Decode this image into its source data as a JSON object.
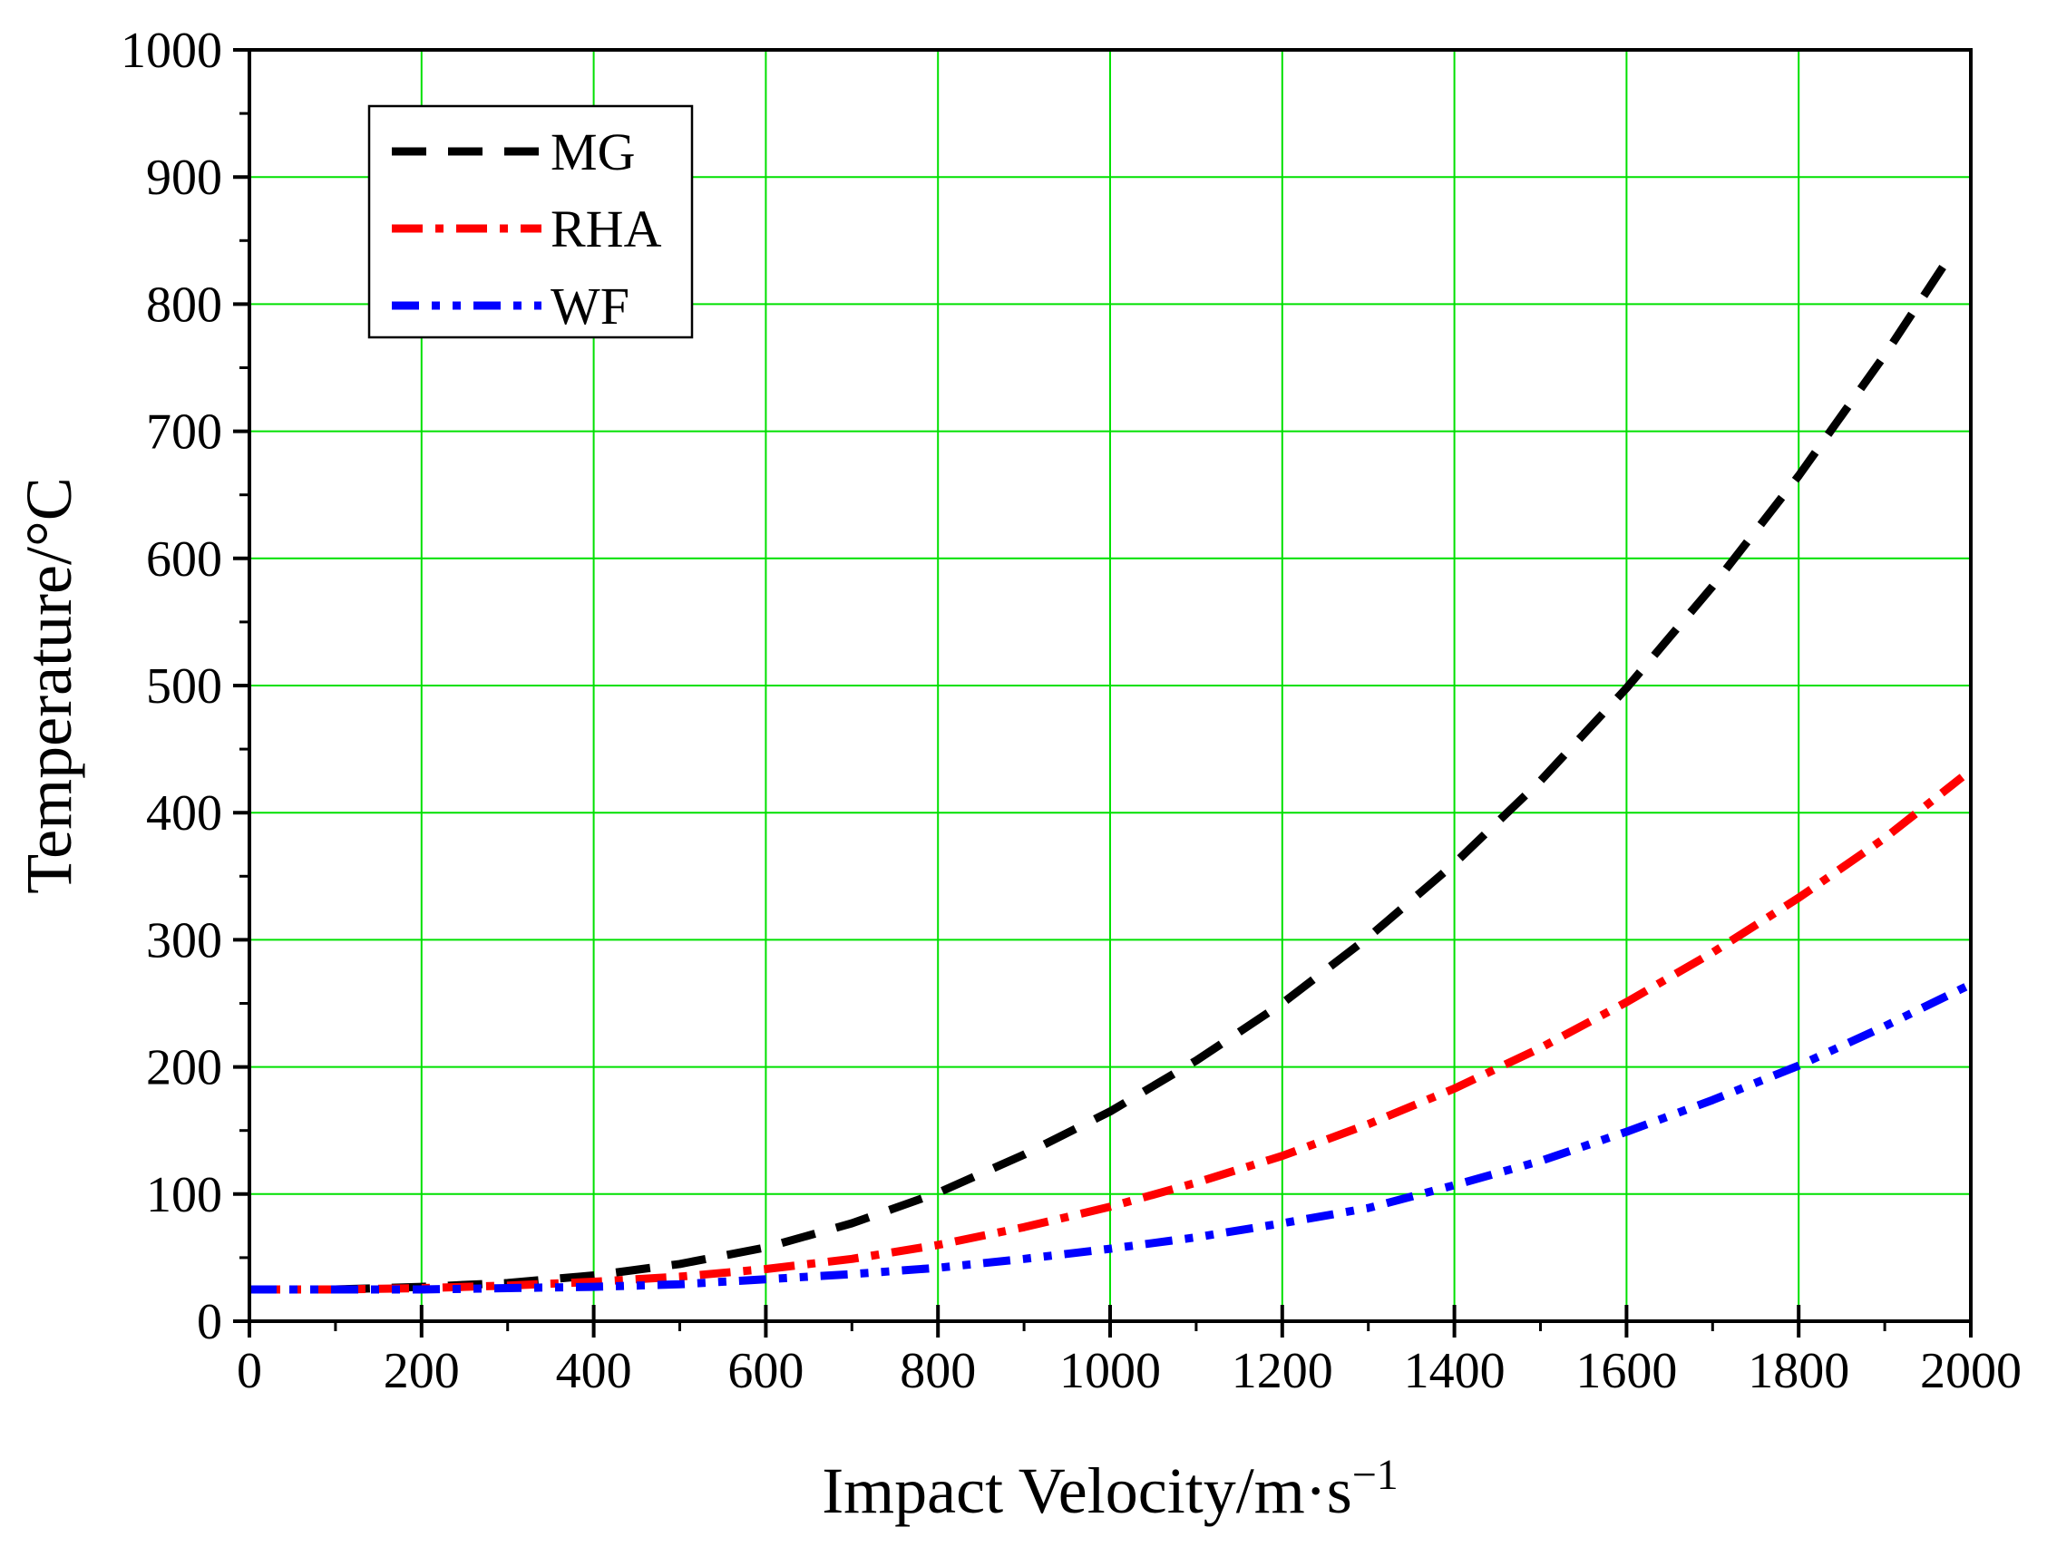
{
  "chart_data": {
    "type": "line",
    "title": "",
    "xlabel": "Impact Velocity/m·s",
    "xlabel_superscript": "−1",
    "ylabel": "Temperature/°C",
    "xlim": [
      0,
      2000
    ],
    "ylim": [
      0,
      1000
    ],
    "xticks": [
      "0",
      "200",
      "400",
      "600",
      "800",
      "1000",
      "1200",
      "1400",
      "1600",
      "1800",
      "2000"
    ],
    "yticks": [
      "0",
      "100",
      "200",
      "300",
      "400",
      "500",
      "600",
      "700",
      "800",
      "900",
      "1000"
    ],
    "grid": true,
    "grid_color": "#00e000",
    "legend_position": "top-left",
    "series": [
      {
        "name": "MG",
        "color": "#000000",
        "style": "dash",
        "x": [
          100,
          200,
          300,
          400,
          500,
          600,
          700,
          800,
          900,
          1000,
          1100,
          1200,
          1300,
          1400,
          1500,
          1600,
          1700,
          1800,
          1900,
          1980
        ],
        "y": [
          25,
          27,
          30,
          36,
          45,
          58,
          77,
          101,
          131,
          165,
          205,
          250,
          302,
          360,
          425,
          498,
          578,
          665,
          760,
          842
        ]
      },
      {
        "name": "RHA",
        "color": "#ff0000",
        "style": "dashdot",
        "x": [
          0,
          100,
          200,
          300,
          400,
          500,
          600,
          700,
          800,
          900,
          1000,
          1100,
          1200,
          1300,
          1400,
          1500,
          1600,
          1700,
          1800,
          1900,
          1990
        ],
        "y": [
          25,
          25,
          26,
          28,
          31,
          35,
          41,
          49,
          60,
          74,
          90,
          109,
          130,
          155,
          183,
          215,
          251,
          290,
          333,
          380,
          428
        ]
      },
      {
        "name": "WF",
        "color": "#0000ff",
        "style": "dashdotdot",
        "x": [
          0,
          100,
          200,
          300,
          400,
          500,
          600,
          700,
          800,
          900,
          1000,
          1100,
          1200,
          1300,
          1400,
          1500,
          1600,
          1700,
          1800,
          1900,
          2000
        ],
        "y": [
          25,
          25,
          25,
          26,
          27,
          29,
          33,
          37,
          42,
          49,
          57,
          66,
          77,
          89,
          107,
          126,
          149,
          174,
          201,
          232,
          265
        ]
      }
    ]
  }
}
